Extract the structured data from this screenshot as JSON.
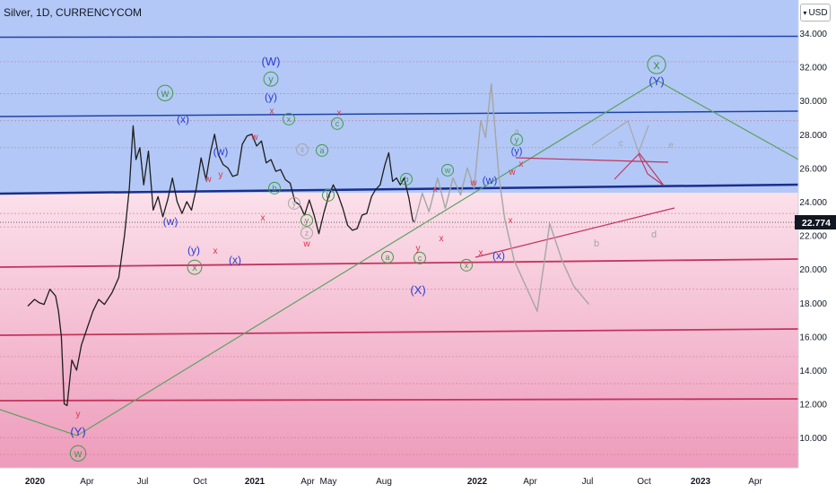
{
  "header": {
    "symbol": "Silver",
    "interval": "1D",
    "source": "CURRENCYCOM"
  },
  "currency_button": "USD",
  "price_tag": "22.774",
  "colors": {
    "blue_zone": "#b3c8f6",
    "blue_line": "#2143a8",
    "pink_light": "#f8d8e3",
    "pink_mid": "#f3c2d3",
    "pink_dark": "#ec9fbb",
    "pink_line": "#c2345d",
    "green": "#3f9b45",
    "red": "#e0304a",
    "blue": "#2a3cd2",
    "gray": "#a5a5a5",
    "price_line": "#1e1e1e"
  },
  "chart_data": {
    "type": "line",
    "title": "Silver, 1D, CURRENCYCOM",
    "y_ticks": [
      "34.000",
      "32.000",
      "30.000",
      "28.000",
      "26.000",
      "24.000",
      "22.000",
      "20.000",
      "18.000",
      "16.000",
      "14.000",
      "12.000",
      "10.000"
    ],
    "x_ticks": [
      "2020",
      "Apr",
      "Jul",
      "Oct",
      "2021",
      "Apr",
      "May",
      "Aug",
      "2022",
      "Apr",
      "Jul",
      "Oct",
      "2023",
      "Apr"
    ],
    "ylim": [
      8.2,
      35.9
    ],
    "last_price": 22.774,
    "series": [
      {
        "name": "Silver",
        "points": [
          [
            0.0,
            17.8
          ],
          [
            0.35,
            18.2
          ],
          [
            0.6,
            18.0
          ],
          [
            0.85,
            17.9
          ],
          [
            1.15,
            18.8
          ],
          [
            1.45,
            18.4
          ],
          [
            1.6,
            17.5
          ],
          [
            1.75,
            16.0
          ],
          [
            1.9,
            12.0
          ],
          [
            2.05,
            11.9
          ],
          [
            2.3,
            14.6
          ],
          [
            2.55,
            14.0
          ],
          [
            2.8,
            15.5
          ],
          [
            3.1,
            16.5
          ],
          [
            3.4,
            17.5
          ],
          [
            3.7,
            18.2
          ],
          [
            4.0,
            17.9
          ],
          [
            4.4,
            18.6
          ],
          [
            4.75,
            19.5
          ],
          [
            5.05,
            22.0
          ],
          [
            5.3,
            24.8
          ],
          [
            5.5,
            28.5
          ],
          [
            5.65,
            26.5
          ],
          [
            5.85,
            27.2
          ],
          [
            6.05,
            25.0
          ],
          [
            6.3,
            27.0
          ],
          [
            6.55,
            23.5
          ],
          [
            6.8,
            24.3
          ],
          [
            7.05,
            23.1
          ],
          [
            7.3,
            24.1
          ],
          [
            7.55,
            25.4
          ],
          [
            7.8,
            24.0
          ],
          [
            8.05,
            23.3
          ],
          [
            8.3,
            24.0
          ],
          [
            8.55,
            23.5
          ],
          [
            8.8,
            24.8
          ],
          [
            9.05,
            26.6
          ],
          [
            9.3,
            25.3
          ],
          [
            9.55,
            27.0
          ],
          [
            9.75,
            28.0
          ],
          [
            9.95,
            26.8
          ],
          [
            10.2,
            26.2
          ],
          [
            10.45,
            26.0
          ],
          [
            10.7,
            25.5
          ],
          [
            10.95,
            25.6
          ],
          [
            11.2,
            27.4
          ],
          [
            11.45,
            27.9
          ],
          [
            11.7,
            28.0
          ],
          [
            11.95,
            27.3
          ],
          [
            12.2,
            27.6
          ],
          [
            12.45,
            26.3
          ],
          [
            12.7,
            26.5
          ],
          [
            12.95,
            25.8
          ],
          [
            13.2,
            25.9
          ],
          [
            13.45,
            25.3
          ],
          [
            13.7,
            25.1
          ],
          [
            13.95,
            24.0
          ],
          [
            14.2,
            23.8
          ],
          [
            14.45,
            23.2
          ],
          [
            14.7,
            24.1
          ],
          [
            14.95,
            23.2
          ],
          [
            15.2,
            22.1
          ],
          [
            15.45,
            23.3
          ],
          [
            15.7,
            24.3
          ],
          [
            15.95,
            25.0
          ],
          [
            16.2,
            24.4
          ],
          [
            16.45,
            23.6
          ],
          [
            16.7,
            22.6
          ],
          [
            16.95,
            22.3
          ],
          [
            17.2,
            22.4
          ],
          [
            17.45,
            23.2
          ],
          [
            17.7,
            23.3
          ],
          [
            17.95,
            24.3
          ],
          [
            18.15,
            24.7
          ],
          [
            18.4,
            25.0
          ],
          [
            18.65,
            26.2
          ],
          [
            18.85,
            26.9
          ],
          [
            19.05,
            25.2
          ],
          [
            19.25,
            25.4
          ],
          [
            19.45,
            25.0
          ],
          [
            19.65,
            25.4
          ],
          [
            19.9,
            24.2
          ],
          [
            20.1,
            22.9
          ],
          [
            20.2,
            22.774
          ]
        ]
      },
      {
        "name": "projection",
        "points": [
          [
            20.2,
            22.774
          ],
          [
            20.6,
            24.5
          ],
          [
            20.95,
            23.4
          ],
          [
            21.4,
            25.4
          ],
          [
            21.8,
            23.6
          ],
          [
            22.2,
            25.4
          ],
          [
            22.6,
            24.4
          ],
          [
            22.95,
            26.0
          ],
          [
            23.3,
            24.8
          ],
          [
            23.65,
            28.8
          ],
          [
            23.9,
            27.8
          ],
          [
            24.2,
            31.0
          ],
          [
            24.6,
            25.5
          ],
          [
            24.9,
            23.0
          ],
          [
            25.4,
            20.5
          ],
          [
            26.0,
            19.0
          ],
          [
            26.6,
            17.5
          ],
          [
            27.25,
            22.7
          ],
          [
            27.9,
            20.5
          ],
          [
            28.5,
            19.0
          ],
          [
            29.3,
            17.9
          ]
        ]
      }
    ]
  }
}
